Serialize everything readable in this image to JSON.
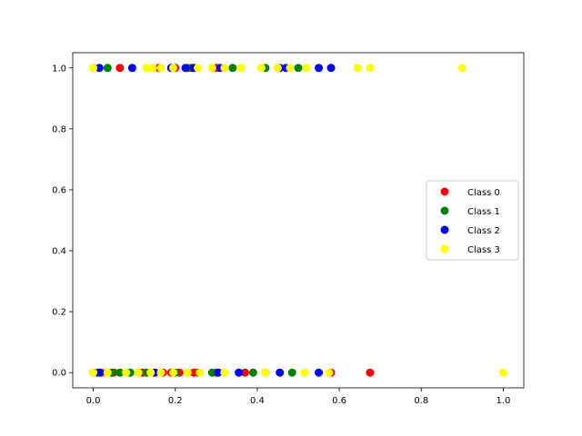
{
  "chart_data": {
    "type": "scatter",
    "xlim": [
      -0.05,
      1.05
    ],
    "ylim": [
      -0.05,
      1.05
    ],
    "xticks": [
      0.0,
      0.2,
      0.4,
      0.6,
      0.8,
      1.0
    ],
    "yticks": [
      0.0,
      0.2,
      0.4,
      0.6,
      0.8,
      1.0
    ],
    "xtick_labels": [
      "0.0",
      "0.2",
      "0.4",
      "0.6",
      "0.8",
      "1.0"
    ],
    "ytick_labels": [
      "0.0",
      "0.2",
      "0.4",
      "0.6",
      "0.8",
      "1.0"
    ],
    "grid": false,
    "legend_position": "center-right",
    "series": [
      {
        "name": "Class 0",
        "color": "#ff0000",
        "x": [
          0.065,
          0.16,
          0.2,
          0.23,
          0.3,
          0.45,
          0.0,
          0.02,
          0.05,
          0.09,
          0.12,
          0.15,
          0.17,
          0.19,
          0.21,
          0.23,
          0.245,
          0.255,
          0.3,
          0.37,
          0.42,
          0.58,
          0.675
        ],
        "y": [
          1,
          1,
          1,
          1,
          1,
          1,
          0,
          0,
          0,
          0,
          0,
          0,
          0,
          0,
          0,
          0,
          0,
          0,
          0,
          0,
          0,
          0,
          0
        ]
      },
      {
        "name": "Class 1",
        "color": "#008000",
        "x": [
          0.0,
          0.035,
          0.24,
          0.34,
          0.42,
          0.5,
          0.01,
          0.045,
          0.065,
          0.09,
          0.13,
          0.2,
          0.29,
          0.39,
          0.485
        ],
        "y": [
          1,
          1,
          1,
          1,
          1,
          1,
          0,
          0,
          0,
          0,
          0,
          0,
          0,
          0,
          0
        ]
      },
      {
        "name": "Class 2",
        "color": "#0000ff",
        "x": [
          0.015,
          0.095,
          0.19,
          0.225,
          0.245,
          0.31,
          0.455,
          0.47,
          0.55,
          0.58,
          0.015,
          0.15,
          0.305,
          0.355,
          0.455,
          0.55
        ],
        "y": [
          1,
          1,
          1,
          1,
          1,
          1,
          1,
          1,
          1,
          1,
          0,
          0,
          0,
          0,
          0,
          0
        ]
      },
      {
        "name": "Class 3",
        "color": "#ffff00",
        "x": [
          0.0,
          0.13,
          0.145,
          0.165,
          0.195,
          0.255,
          0.29,
          0.32,
          0.36,
          0.41,
          0.45,
          0.48,
          0.52,
          0.645,
          0.675,
          0.9,
          0.0,
          0.035,
          0.08,
          0.11,
          0.14,
          0.165,
          0.195,
          0.23,
          0.26,
          0.32,
          0.42,
          0.515,
          0.575,
          1.0
        ],
        "y": [
          1,
          1,
          1,
          1,
          1,
          1,
          1,
          1,
          1,
          1,
          1,
          1,
          1,
          1,
          1,
          1,
          0,
          0,
          0,
          0,
          0,
          0,
          0,
          0,
          0,
          0,
          0,
          0,
          0,
          0
        ]
      }
    ]
  }
}
